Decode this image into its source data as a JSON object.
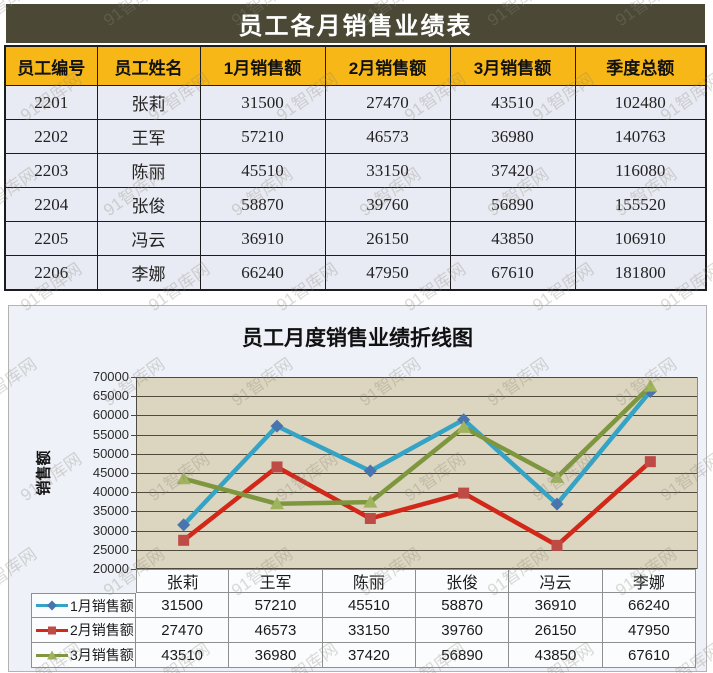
{
  "watermark": {
    "text": "91智库网"
  },
  "colors": {
    "title_bar_bg": "#4b4936",
    "header_bg": "#f7b717",
    "row_bg": "#e9ebf4",
    "chart_box_bg": "#eef1f8",
    "plot_bg": "#dcd5bf",
    "gridline": "#4e4a3e"
  },
  "table": {
    "title": "员工各月销售业绩表",
    "columns": [
      "员工编号",
      "员工姓名",
      "1月销售额",
      "2月销售额",
      "3月销售额",
      "季度总额"
    ],
    "rows": [
      [
        "2201",
        "张莉",
        "31500",
        "27470",
        "43510",
        "102480"
      ],
      [
        "2202",
        "王军",
        "57210",
        "46573",
        "36980",
        "140763"
      ],
      [
        "2203",
        "陈丽",
        "45510",
        "33150",
        "37420",
        "116080"
      ],
      [
        "2204",
        "张俊",
        "58870",
        "39760",
        "56890",
        "155520"
      ],
      [
        "2205",
        "冯云",
        "36910",
        "26150",
        "43850",
        "106910"
      ],
      [
        "2206",
        "李娜",
        "66240",
        "47950",
        "67610",
        "181800"
      ]
    ]
  },
  "chart_data": {
    "type": "line",
    "title": "员工月度销售业绩折线图",
    "xlabel": "",
    "ylabel": "销售额",
    "categories": [
      "张莉",
      "王军",
      "陈丽",
      "张俊",
      "冯云",
      "李娜"
    ],
    "series": [
      {
        "name": "1月销售额",
        "values": [
          31500,
          57210,
          45510,
          58870,
          36910,
          66240
        ],
        "line_color": "#35a3c6",
        "marker_color": "#4a74ae",
        "marker": "diamond"
      },
      {
        "name": "2月销售额",
        "values": [
          27470,
          46573,
          33150,
          39760,
          26150,
          47950
        ],
        "line_color": "#d2281a",
        "marker_color": "#be4b45",
        "marker": "square"
      },
      {
        "name": "3月销售额",
        "values": [
          43510,
          36980,
          37420,
          56890,
          43850,
          67610
        ],
        "line_color": "#7e973e",
        "marker_color": "#9fb45c",
        "marker": "triangle"
      }
    ],
    "ylim": [
      20000,
      70000
    ],
    "ytick_step": 5000,
    "yticks": [
      70000,
      65000,
      60000,
      55000,
      50000,
      45000,
      40000,
      35000,
      30000,
      25000,
      20000
    ],
    "grid": "horizontal",
    "legend_position": "left-of-data-table"
  }
}
